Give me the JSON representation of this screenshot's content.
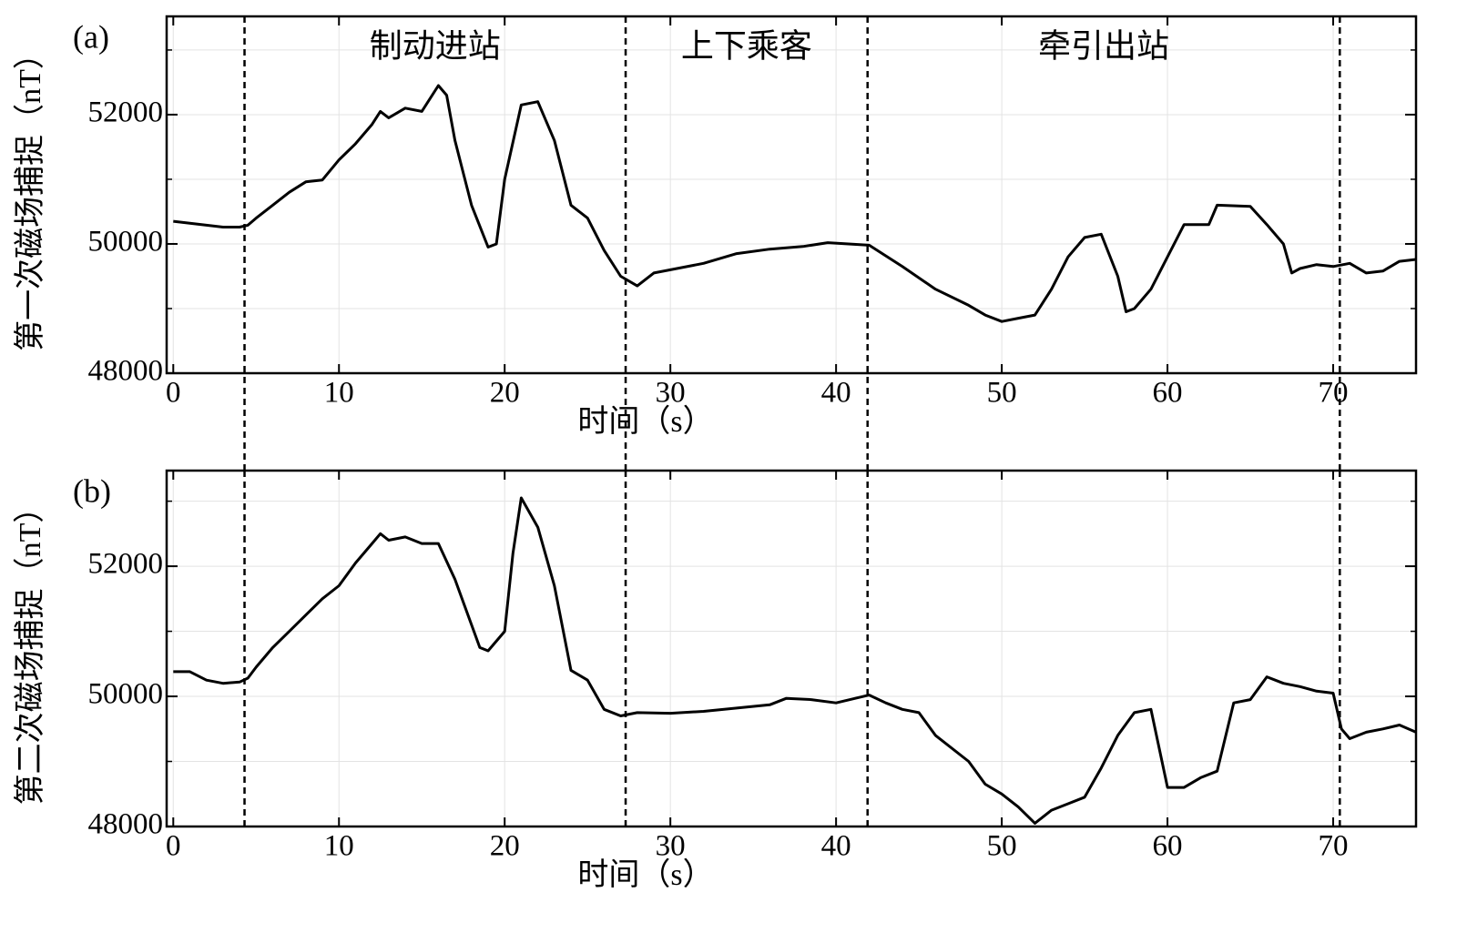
{
  "chart_data": [
    {
      "type": "line",
      "title": "(a)",
      "x_label": "时间（s）",
      "y_label": "第一次磁场捕捉（nT）",
      "annotations": [
        "制动进站",
        "上下乘客",
        "牵引出站"
      ],
      "vlines": [
        4.3,
        27.3,
        41.9,
        70.4
      ],
      "xlim": [
        -0.4,
        75
      ],
      "ylim": [
        48000,
        53520
      ],
      "xticks": [
        0,
        10,
        20,
        30,
        40,
        50,
        60,
        70
      ],
      "yticks": [
        48000,
        50000,
        52000
      ],
      "minor_yticks": [
        49000,
        51000,
        53000
      ],
      "grid": true,
      "x": [
        0,
        1,
        2,
        3,
        4,
        4.5,
        5,
        6,
        7,
        8,
        9,
        10,
        11,
        12,
        12.5,
        13,
        14,
        15,
        16,
        16.5,
        17,
        18,
        19,
        19.5,
        20,
        21,
        22,
        23,
        24,
        25,
        26,
        27,
        28,
        29,
        30,
        32,
        34,
        36,
        38,
        39.5,
        42,
        44,
        46,
        48,
        49,
        50,
        51,
        52,
        53,
        54,
        55,
        56,
        57,
        57.5,
        58,
        59,
        60,
        61,
        62.5,
        63,
        65,
        66,
        67,
        67.5,
        68,
        69,
        70,
        71,
        72,
        73,
        74,
        75
      ],
      "series": [
        {
          "name": "第一次磁场捕捉",
          "color": "#000000",
          "values": [
            50350,
            50320,
            50290,
            50260,
            50260,
            50290,
            50400,
            50600,
            50800,
            50960,
            50990,
            51300,
            51550,
            51850,
            52050,
            51950,
            52100,
            52050,
            52450,
            52300,
            51600,
            50600,
            49950,
            50000,
            51000,
            52150,
            52200,
            51600,
            50600,
            50400,
            49900,
            49500,
            49350,
            49550,
            49600,
            49700,
            49850,
            49920,
            49960,
            50020,
            49980,
            49650,
            49300,
            49050,
            48900,
            48800,
            48850,
            48900,
            49300,
            49800,
            50100,
            50150,
            49500,
            48950,
            49000,
            49300,
            49800,
            50300,
            50300,
            50600,
            50580,
            50300,
            50000,
            49550,
            49620,
            49680,
            49650,
            49700,
            49550,
            49580,
            49730,
            49760
          ]
        }
      ]
    },
    {
      "type": "line",
      "title": "(b)",
      "x_label": "时间（s）",
      "y_label": "第二次磁场捕捉（nT）",
      "vlines": [
        4.3,
        27.3,
        41.9,
        70.4
      ],
      "xlim": [
        -0.4,
        75
      ],
      "ylim": [
        48000,
        53470
      ],
      "xticks": [
        0,
        10,
        20,
        30,
        40,
        50,
        60,
        70
      ],
      "yticks": [
        48000,
        50000,
        52000
      ],
      "minor_yticks": [
        49000,
        51000,
        53000
      ],
      "grid": true,
      "x": [
        0,
        1,
        2,
        3,
        4,
        4.5,
        5,
        6,
        7,
        8,
        9,
        10,
        11,
        12,
        12.5,
        13,
        14,
        15,
        16,
        17,
        18,
        18.5,
        19,
        20,
        20.5,
        21,
        22,
        23,
        24,
        25,
        26,
        27,
        28,
        30,
        32,
        34,
        36,
        37,
        38.5,
        40,
        42,
        43,
        44,
        45,
        46,
        48,
        49,
        50,
        51,
        52,
        53,
        54,
        55,
        56,
        57,
        58,
        59,
        59.5,
        60,
        61,
        62,
        63,
        64,
        65,
        66,
        67,
        68,
        69,
        70,
        70.5,
        71,
        72,
        73,
        74,
        75
      ],
      "series": [
        {
          "name": "第二次磁场捕捉",
          "color": "#000000",
          "values": [
            50380,
            50380,
            50250,
            50200,
            50220,
            50280,
            50450,
            50750,
            51000,
            51250,
            51500,
            51700,
            52050,
            52350,
            52500,
            52400,
            52450,
            52350,
            52350,
            51800,
            51100,
            50750,
            50700,
            51000,
            52200,
            53050,
            52600,
            51700,
            50400,
            50250,
            49800,
            49700,
            49750,
            49740,
            49770,
            49820,
            49870,
            49970,
            49950,
            49900,
            50020,
            49900,
            49800,
            49750,
            49400,
            49000,
            48650,
            48500,
            48300,
            48050,
            48250,
            48350,
            48450,
            48900,
            49400,
            49750,
            49800,
            49200,
            48600,
            48600,
            48750,
            48850,
            49900,
            49950,
            50300,
            50200,
            50150,
            50080,
            50050,
            49500,
            49350,
            49450,
            49500,
            49560,
            49450
          ]
        }
      ]
    }
  ]
}
